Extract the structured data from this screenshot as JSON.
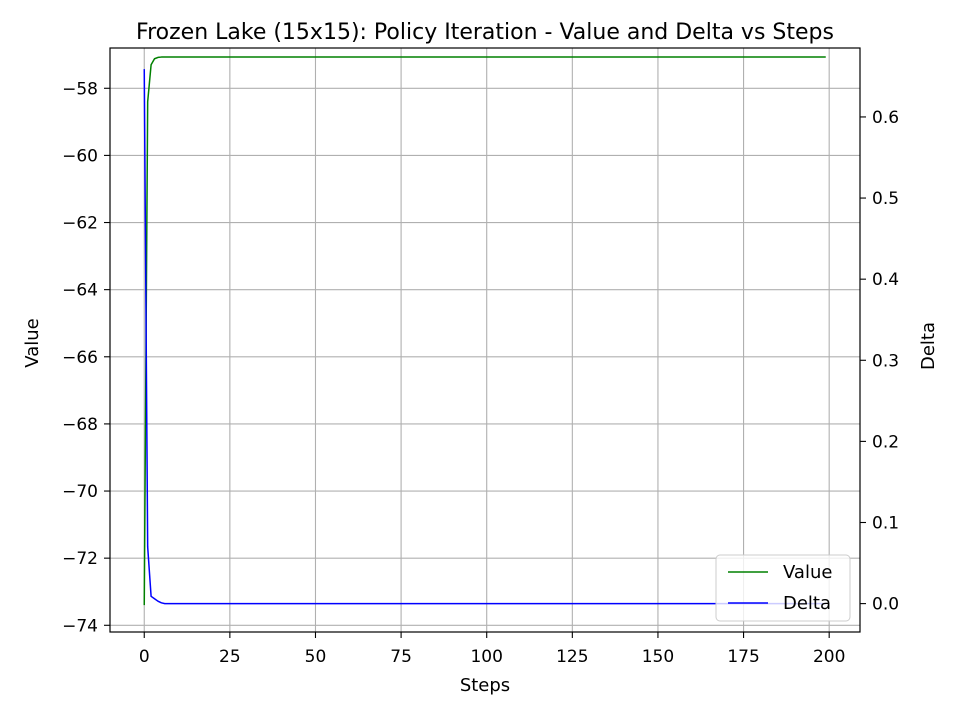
{
  "chart_data": {
    "type": "line",
    "title": "Frozen Lake (15x15): Policy Iteration - Value and Delta vs Steps",
    "xlabel": "Steps",
    "ylabel": "Value",
    "ylabel_right": "Delta",
    "xlim": [
      -10,
      209
    ],
    "ylim": [
      -74.2,
      -56.8
    ],
    "ylim_right": [
      -0.035,
      0.685
    ],
    "x_ticks": [
      0,
      25,
      50,
      75,
      100,
      125,
      150,
      175,
      200
    ],
    "y_ticks": [
      -74,
      -72,
      -70,
      -68,
      -66,
      -64,
      -62,
      -60,
      -58
    ],
    "y_ticks_right": [
      0.0,
      0.1,
      0.2,
      0.3,
      0.4,
      0.5,
      0.6
    ],
    "y_ticks_right_labels": [
      "0.0",
      "0.1",
      "0.2",
      "0.3",
      "0.4",
      "0.5",
      "0.6"
    ],
    "grid": true,
    "legend_position": "lower-right",
    "series": [
      {
        "name": "Value",
        "axis": "left",
        "color": "#008000",
        "x": [
          0,
          1,
          2,
          3,
          4,
          5,
          6,
          199
        ],
        "y": [
          -73.4,
          -58.4,
          -57.3,
          -57.12,
          -57.08,
          -57.07,
          -57.07,
          -57.07
        ]
      },
      {
        "name": "Delta",
        "axis": "right",
        "color": "#0000ff",
        "x": [
          0,
          1,
          2,
          3,
          4,
          5,
          6,
          199
        ],
        "y": [
          0.659,
          0.07,
          0.009,
          0.006,
          0.003,
          0.001,
          0.0,
          0.0
        ]
      }
    ]
  }
}
